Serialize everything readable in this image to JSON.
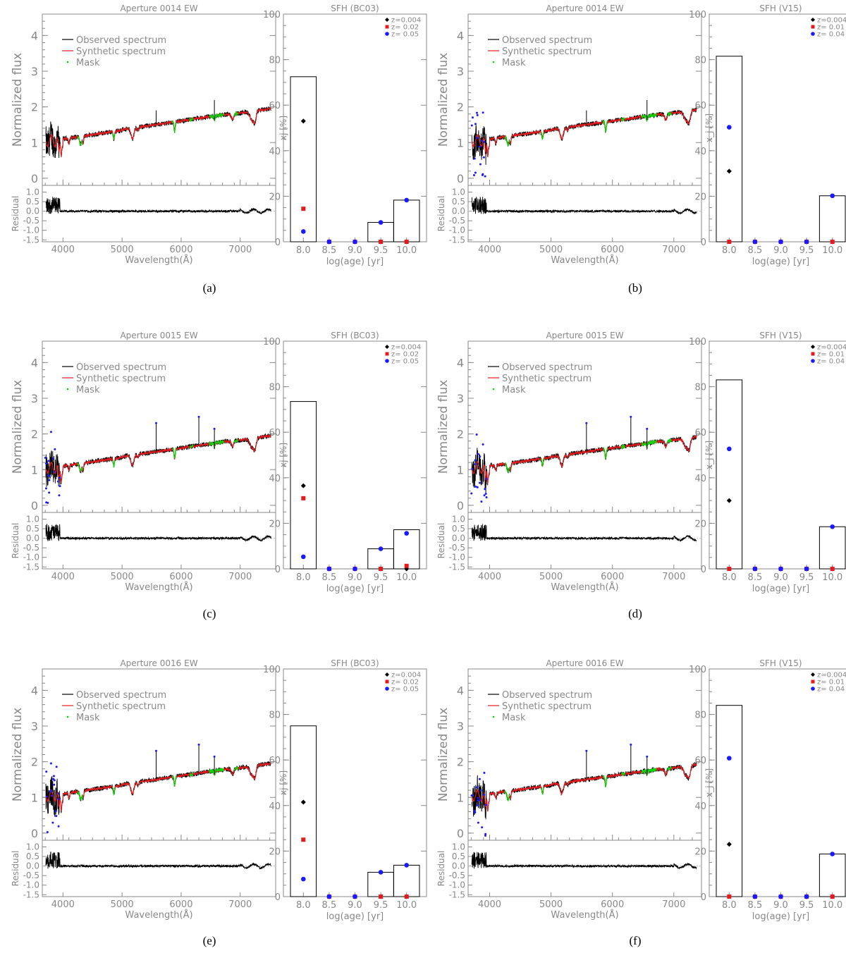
{
  "colors": {
    "observed": "#000000",
    "synthetic": "#e41a1c",
    "mask": "#00dd00",
    "flag": "#1a1aff",
    "axis": "#888888",
    "text": "#888888"
  },
  "spectral_common": {
    "flux_ylabel": "Normalized flux",
    "residual_ylabel": "Residual",
    "xlabel": "Wavelength(Å)",
    "flux_yticks": [
      "0",
      "1",
      "2",
      "3",
      "4"
    ],
    "residual_yticks": [
      "1.0",
      "0.5",
      "0.0",
      "-0.5",
      "-1.0",
      "-1.5"
    ],
    "xticks": [
      "4000",
      "5000",
      "6000",
      "7000"
    ],
    "legend": [
      "Observed spectrum",
      "Synthetic spectrum",
      "Mask"
    ]
  },
  "sfh_common": {
    "xlabel": "log(age) [yr]",
    "xticks": [
      "8.0",
      "8.5",
      "9.0",
      "9.5",
      "10.0"
    ],
    "yticks": [
      "0",
      "20",
      "40",
      "60",
      "80",
      "100"
    ]
  },
  "chart_data": [
    {
      "panel": "a",
      "type": "line",
      "title": "Aperture 0014 EW",
      "xlim": [
        3650,
        7600
      ],
      "ylim": [
        -0.2,
        4.6
      ],
      "residual_ylim": [
        -1.6,
        1.35
      ],
      "spike_sets": 0,
      "sfh": {
        "type": "bar",
        "title": "SFH (BC03)",
        "ylabel": "xj [%]",
        "ylim": [
          0,
          100
        ],
        "categories": [
          8.0,
          8.5,
          9.0,
          9.5,
          10.0
        ],
        "bars": [
          72.5,
          0,
          0,
          8.5,
          18.3
        ],
        "metallicity_legend": [
          "z=0.004",
          "z= 0.02",
          "z= 0.05"
        ],
        "points": [
          [
            53,
            0,
            0,
            0,
            0
          ],
          [
            14.5,
            0,
            0,
            0,
            0
          ],
          [
            4.5,
            0,
            0,
            8.5,
            18.3
          ]
        ]
      }
    },
    {
      "panel": "b",
      "type": "line",
      "title": "Aperture 0014 EW",
      "xlim": [
        3650,
        7450
      ],
      "ylim": [
        -0.2,
        4.6
      ],
      "residual_ylim": [
        -1.6,
        1.35
      ],
      "spike_sets": 1,
      "sfh": {
        "type": "bar",
        "title": "SFH (V15)",
        "ylabel": "x_j [%]",
        "ylim": [
          0,
          100
        ],
        "categories": [
          8.0,
          8.5,
          9.0,
          9.5,
          10.0
        ],
        "bars": [
          81.5,
          0,
          0,
          0,
          20.2
        ],
        "metallicity_legend": [
          "z=0.004",
          "z= 0.01",
          "z= 0.04"
        ],
        "points": [
          [
            31,
            0,
            0,
            0,
            0
          ],
          [
            0,
            0,
            0,
            0,
            0
          ],
          [
            50.3,
            0,
            0,
            0,
            20.2
          ]
        ]
      }
    },
    {
      "panel": "c",
      "type": "line",
      "title": "Aperture 0015 EW",
      "xlim": [
        3650,
        7600
      ],
      "ylim": [
        -0.2,
        4.6
      ],
      "residual_ylim": [
        -1.6,
        1.35
      ],
      "spike_sets": 2,
      "sfh": {
        "type": "bar",
        "title": "SFH (BC03)",
        "ylabel": "xj [%]",
        "ylim": [
          0,
          100
        ],
        "categories": [
          8.0,
          8.5,
          9.0,
          9.5,
          10.0
        ],
        "bars": [
          73.5,
          0,
          0,
          8.8,
          17.2
        ],
        "metallicity_legend": [
          "z=0.004",
          "z= 0.02",
          "z= 0.05"
        ],
        "points": [
          [
            36.5,
            0,
            0,
            0,
            0
          ],
          [
            31,
            0,
            0,
            0,
            1.3
          ],
          [
            5.3,
            0,
            0,
            8.8,
            15.6
          ]
        ]
      }
    },
    {
      "panel": "d",
      "type": "line",
      "title": "Aperture 0015 EW",
      "xlim": [
        3650,
        7450
      ],
      "ylim": [
        -0.2,
        4.6
      ],
      "residual_ylim": [
        -1.6,
        1.35
      ],
      "spike_sets": 2,
      "sfh": {
        "type": "bar",
        "title": "SFH (V15)",
        "ylabel": "x_j [%]",
        "ylim": [
          0,
          100
        ],
        "categories": [
          8.0,
          8.5,
          9.0,
          9.5,
          10.0
        ],
        "bars": [
          83,
          0,
          0,
          0,
          18.5
        ],
        "metallicity_legend": [
          "z=0.004",
          "z= 0.01",
          "z= 0.04"
        ],
        "points": [
          [
            30,
            0,
            0,
            0,
            0
          ],
          [
            0,
            0,
            0,
            0,
            0
          ],
          [
            52.7,
            0,
            0,
            0,
            18.5
          ]
        ]
      }
    },
    {
      "panel": "e",
      "type": "line",
      "title": "Aperture 0016 EW",
      "xlim": [
        3650,
        7600
      ],
      "ylim": [
        -0.2,
        4.6
      ],
      "residual_ylim": [
        -1.6,
        1.35
      ],
      "spike_sets": 2,
      "sfh": {
        "type": "bar",
        "title": "SFH (BC03)",
        "ylabel": "xj [%]",
        "ylim": [
          0,
          100
        ],
        "categories": [
          8.0,
          8.5,
          9.0,
          9.5,
          10.0
        ],
        "bars": [
          75,
          0,
          0,
          10.7,
          13.8
        ],
        "metallicity_legend": [
          "z=0.004",
          "z= 0.02",
          "z= 0.05"
        ],
        "points": [
          [
            41.5,
            0,
            0,
            0,
            0
          ],
          [
            25,
            0,
            0,
            0,
            0
          ],
          [
            7.7,
            0,
            0,
            10.7,
            13.8
          ]
        ]
      }
    },
    {
      "panel": "f",
      "type": "line",
      "title": "Aperture 0016 EW",
      "xlim": [
        3650,
        7450
      ],
      "ylim": [
        -0.2,
        4.6
      ],
      "residual_ylim": [
        -1.6,
        1.35
      ],
      "spike_sets": 2,
      "sfh": {
        "type": "bar",
        "title": "SFH (V15)",
        "ylabel": "x_j [%]",
        "ylim": [
          0,
          100
        ],
        "categories": [
          8.0,
          8.5,
          9.0,
          9.5,
          10.0
        ],
        "bars": [
          84,
          0,
          0,
          0,
          18.7
        ],
        "metallicity_legend": [
          "z=0.004",
          "z= 0.01",
          "z= 0.04"
        ],
        "points": [
          [
            23,
            0,
            0,
            0,
            0
          ],
          [
            0,
            0,
            0,
            0,
            0
          ],
          [
            60.8,
            0,
            0,
            0,
            18.7
          ]
        ]
      }
    }
  ],
  "sublabels": [
    "(a)",
    "(b)",
    "(c)",
    "(d)",
    "(e)",
    "(f)"
  ]
}
